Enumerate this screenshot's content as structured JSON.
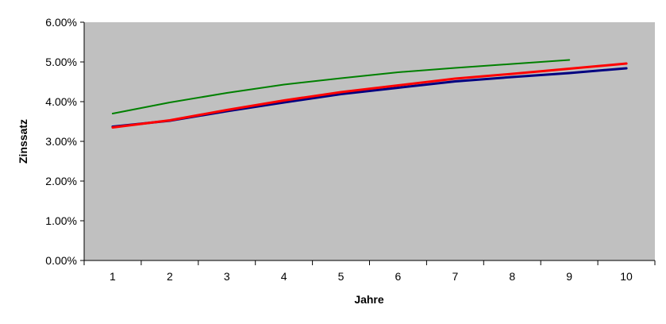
{
  "chart_data": {
    "type": "line",
    "xlabel": "Jahre",
    "ylabel": "Zinssatz",
    "x": [
      1,
      2,
      3,
      4,
      5,
      6,
      7,
      8,
      9,
      10
    ],
    "x_tick_labels": [
      "1",
      "2",
      "3",
      "4",
      "5",
      "6",
      "7",
      "8",
      "9",
      "10"
    ],
    "y_tick_labels": [
      "0.00%",
      "1.00%",
      "2.00%",
      "3.00%",
      "4.00%",
      "5.00%",
      "6.00%"
    ],
    "ylim": [
      0,
      6
    ],
    "grid": false,
    "plot_background": "#c0c0c0",
    "series": [
      {
        "color": "#008000",
        "width": 2,
        "values": [
          3.7,
          3.98,
          4.22,
          4.43,
          4.59,
          4.74,
          4.85,
          4.95,
          5.05,
          null
        ]
      },
      {
        "color": "#000080",
        "width": 3,
        "values": [
          3.37,
          3.52,
          3.76,
          3.98,
          4.19,
          4.35,
          4.51,
          4.62,
          4.72,
          4.84
        ]
      },
      {
        "color": "#ff0000",
        "width": 3,
        "values": [
          3.35,
          3.53,
          3.79,
          4.03,
          4.24,
          4.41,
          4.58,
          4.7,
          4.83,
          4.96
        ]
      }
    ]
  }
}
